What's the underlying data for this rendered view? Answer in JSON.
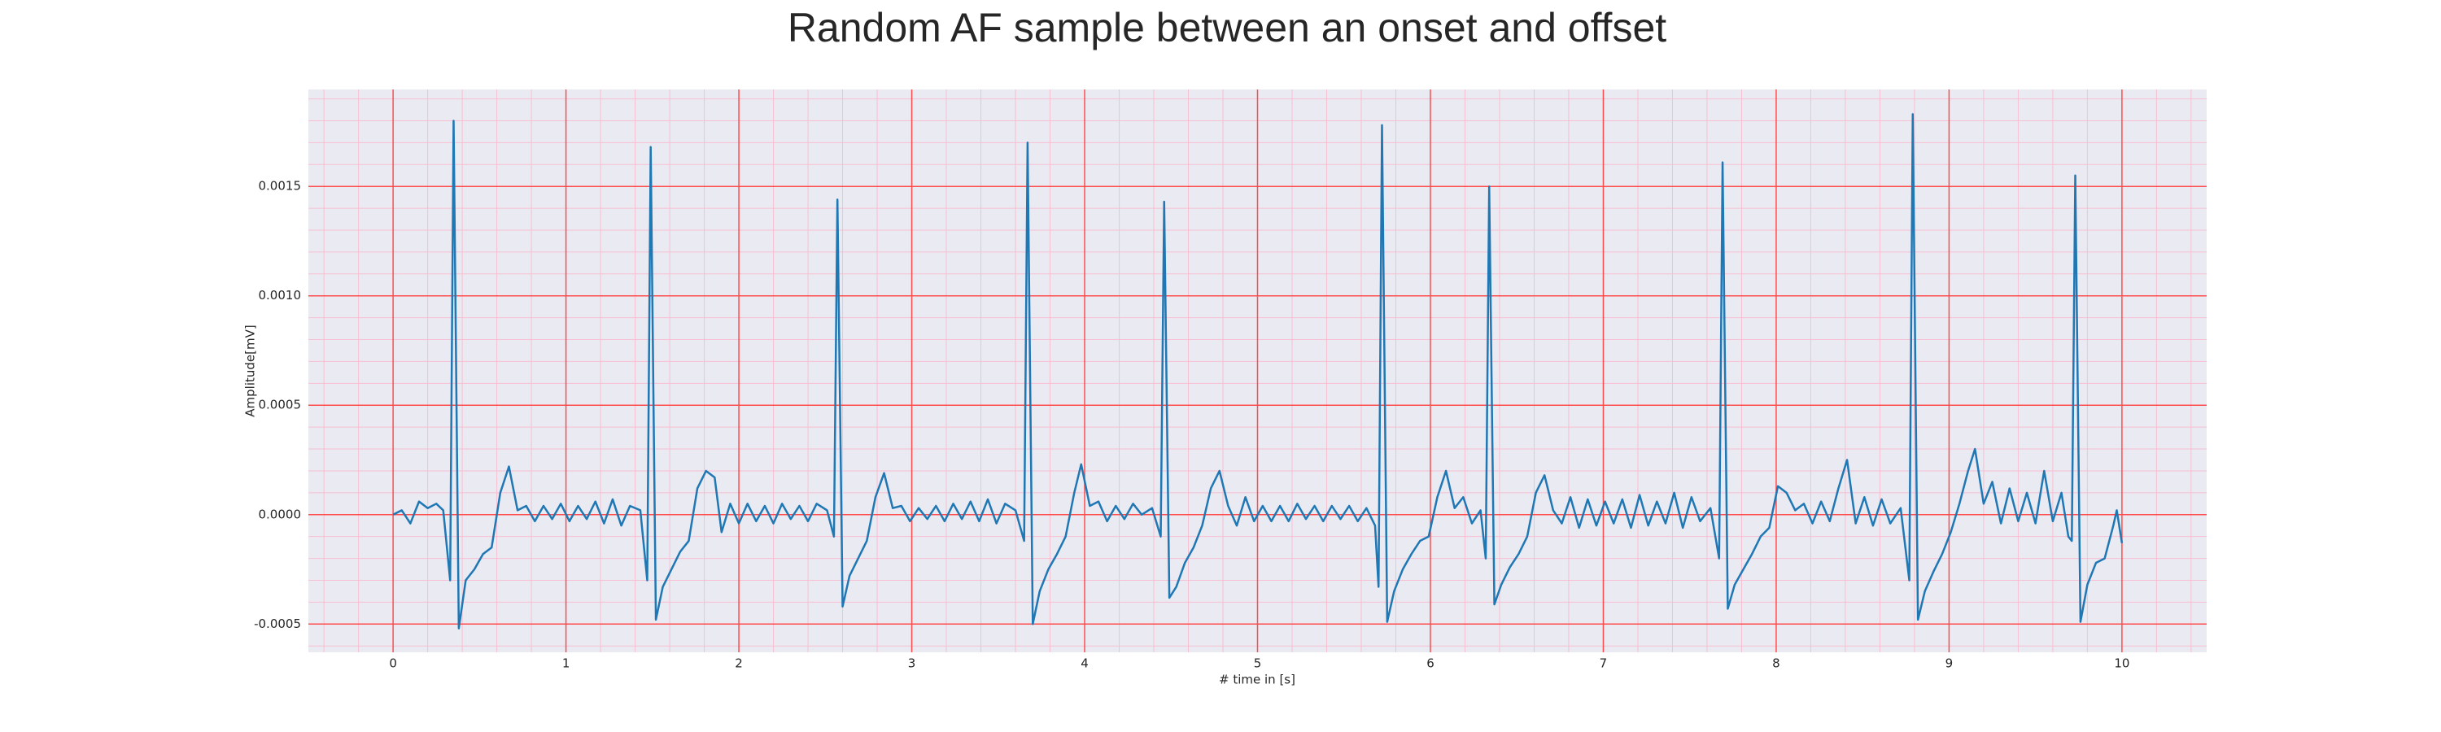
{
  "chart_data": {
    "type": "line",
    "title": "Random AF sample between an onset and offset",
    "xlabel": "# time in [s]",
    "ylabel": "Amplitude[mV]",
    "color": "#1f77b4",
    "grid": true,
    "grid_color": "#ff4d4d",
    "minor_grid_color": "#f7bfd0",
    "background": "#eaeaf2",
    "xlim": [
      -0.49,
      10.49
    ],
    "ylim": [
      -0.000629,
      0.001943
    ],
    "xticks": [
      0,
      1,
      2,
      3,
      4,
      5,
      6,
      7,
      8,
      9,
      10
    ],
    "yticks": [
      {
        "value": -0.0005,
        "label": "-0.0005"
      },
      {
        "value": 0,
        "label": "0.0000"
      },
      {
        "value": 0.0005,
        "label": "0.0005"
      },
      {
        "value": 0.001,
        "label": "0.0010"
      },
      {
        "value": 0.0015,
        "label": "0.0015"
      }
    ],
    "xminor_ticks": [
      -0.4,
      -0.2,
      0.2,
      0.4,
      0.6,
      0.8,
      1.2,
      1.4,
      1.6,
      1.8,
      2.2,
      2.4,
      2.6,
      2.8,
      3.2,
      3.4,
      3.6,
      3.8,
      4.2,
      4.4,
      4.6,
      4.8,
      5.2,
      5.4,
      5.6,
      5.8,
      6.2,
      6.4,
      6.6,
      6.8,
      7.2,
      7.4,
      7.6,
      7.8,
      8.2,
      8.4,
      8.6,
      8.8,
      9.2,
      9.4,
      9.6,
      9.8,
      10.2,
      10.4
    ],
    "yminor_ticks": [
      -0.0006,
      -0.0004,
      -0.0003,
      -0.0002,
      -0.0001,
      0.0001,
      0.0002,
      0.0003,
      0.0004,
      0.0006,
      0.0007,
      0.0008,
      0.0009,
      0.0011,
      0.0012,
      0.0013,
      0.0014,
      0.0016,
      0.0017,
      0.0018,
      0.0019
    ],
    "x": [
      0.0,
      0.05,
      0.1,
      0.15,
      0.2,
      0.25,
      0.29,
      0.33,
      0.35,
      0.38,
      0.42,
      0.47,
      0.52,
      0.57,
      0.62,
      0.67,
      0.72,
      0.77,
      0.82,
      0.87,
      0.92,
      0.97,
      1.02,
      1.07,
      1.12,
      1.17,
      1.22,
      1.27,
      1.32,
      1.37,
      1.43,
      1.47,
      1.49,
      1.52,
      1.56,
      1.61,
      1.66,
      1.71,
      1.76,
      1.81,
      1.86,
      1.9,
      1.95,
      2.0,
      2.05,
      2.1,
      2.15,
      2.2,
      2.25,
      2.3,
      2.35,
      2.4,
      2.45,
      2.51,
      2.55,
      2.57,
      2.6,
      2.64,
      2.69,
      2.74,
      2.79,
      2.84,
      2.89,
      2.94,
      2.99,
      3.04,
      3.09,
      3.14,
      3.19,
      3.24,
      3.29,
      3.34,
      3.39,
      3.44,
      3.49,
      3.54,
      3.6,
      3.65,
      3.67,
      3.7,
      3.74,
      3.79,
      3.84,
      3.89,
      3.94,
      3.98,
      4.03,
      4.08,
      4.13,
      4.18,
      4.23,
      4.28,
      4.33,
      4.39,
      4.44,
      4.46,
      4.49,
      4.53,
      4.58,
      4.63,
      4.68,
      4.73,
      4.78,
      4.83,
      4.88,
      4.93,
      4.98,
      5.03,
      5.08,
      5.13,
      5.18,
      5.23,
      5.28,
      5.33,
      5.38,
      5.43,
      5.48,
      5.53,
      5.58,
      5.63,
      5.68,
      5.7,
      5.72,
      5.75,
      5.79,
      5.84,
      5.89,
      5.94,
      5.99,
      6.04,
      6.09,
      6.14,
      6.19,
      6.24,
      6.29,
      6.32,
      6.34,
      6.37,
      6.41,
      6.46,
      6.51,
      6.56,
      6.61,
      6.66,
      6.71,
      6.76,
      6.81,
      6.86,
      6.91,
      6.96,
      7.01,
      7.06,
      7.11,
      7.16,
      7.21,
      7.26,
      7.31,
      7.36,
      7.41,
      7.46,
      7.51,
      7.56,
      7.62,
      7.67,
      7.69,
      7.72,
      7.76,
      7.81,
      7.86,
      7.91,
      7.96,
      8.01,
      8.06,
      8.11,
      8.16,
      8.21,
      8.26,
      8.31,
      8.36,
      8.41,
      8.46,
      8.51,
      8.56,
      8.61,
      8.66,
      8.72,
      8.77,
      8.79,
      8.82,
      8.86,
      8.91,
      8.96,
      9.01,
      9.06,
      9.11,
      9.15,
      9.2,
      9.25,
      9.3,
      9.35,
      9.4,
      9.45,
      9.5,
      9.55,
      9.6,
      9.65,
      9.69,
      9.71,
      9.73,
      9.76,
      9.8,
      9.85,
      9.9,
      9.95,
      9.97,
      10.0
    ],
    "values": [
      0,
      2e-05,
      -4e-05,
      6e-05,
      3e-05,
      5e-05,
      2e-05,
      -0.0003,
      0.0018,
      -0.00052,
      -0.0003,
      -0.00025,
      -0.00018,
      -0.00015,
      0.0001,
      0.00022,
      2e-05,
      4e-05,
      -3e-05,
      4e-05,
      -2e-05,
      5e-05,
      -3e-05,
      4e-05,
      -2e-05,
      6e-05,
      -4e-05,
      7e-05,
      -5e-05,
      4e-05,
      2e-05,
      -0.0003,
      0.00168,
      -0.00048,
      -0.00033,
      -0.00025,
      -0.00017,
      -0.00012,
      0.00012,
      0.0002,
      0.00017,
      -8e-05,
      5e-05,
      -4e-05,
      5e-05,
      -3e-05,
      4e-05,
      -4e-05,
      5e-05,
      -2e-05,
      4e-05,
      -3e-05,
      5e-05,
      2e-05,
      -0.0001,
      0.00144,
      -0.00042,
      -0.00028,
      -0.0002,
      -0.00012,
      8e-05,
      0.00019,
      3e-05,
      4e-05,
      -3e-05,
      3e-05,
      -2e-05,
      4e-05,
      -3e-05,
      5e-05,
      -2e-05,
      6e-05,
      -3e-05,
      7e-05,
      -4e-05,
      5e-05,
      2e-05,
      -0.00012,
      0.0017,
      -0.0005,
      -0.00035,
      -0.00025,
      -0.00018,
      -0.0001,
      0.0001,
      0.00023,
      4e-05,
      6e-05,
      -3e-05,
      4e-05,
      -2e-05,
      5e-05,
      0,
      3e-05,
      -0.0001,
      0.00143,
      -0.00038,
      -0.00033,
      -0.00022,
      -0.00015,
      -5e-05,
      0.00012,
      0.0002,
      4e-05,
      -5e-05,
      8e-05,
      -3e-05,
      4e-05,
      -3e-05,
      4e-05,
      -3e-05,
      5e-05,
      -2e-05,
      4e-05,
      -3e-05,
      4e-05,
      -2e-05,
      4e-05,
      -3e-05,
      3e-05,
      -5e-05,
      -0.00033,
      0.00178,
      -0.00049,
      -0.00035,
      -0.00025,
      -0.00018,
      -0.00012,
      -0.0001,
      8e-05,
      0.0002,
      3e-05,
      8e-05,
      -4e-05,
      2e-05,
      -0.0002,
      0.0015,
      -0.00041,
      -0.00032,
      -0.00024,
      -0.00018,
      -0.0001,
      0.0001,
      0.00018,
      2e-05,
      -4e-05,
      8e-05,
      -6e-05,
      7e-05,
      -5e-05,
      6e-05,
      -4e-05,
      7e-05,
      -6e-05,
      9e-05,
      -5e-05,
      6e-05,
      -4e-05,
      0.0001,
      -6e-05,
      8e-05,
      -3e-05,
      3e-05,
      -0.0002,
      0.00161,
      -0.00043,
      -0.00032,
      -0.00025,
      -0.00018,
      -0.0001,
      -6e-05,
      0.00013,
      0.0001,
      2e-05,
      5e-05,
      -4e-05,
      6e-05,
      -3e-05,
      0.00012,
      0.00025,
      -4e-05,
      8e-05,
      -5e-05,
      7e-05,
      -4e-05,
      3e-05,
      -0.0003,
      0.00183,
      -0.00048,
      -0.00035,
      -0.00026,
      -0.00018,
      -8e-05,
      5e-05,
      0.0002,
      0.0003,
      5e-05,
      0.00015,
      -4e-05,
      0.00012,
      -3e-05,
      0.0001,
      -4e-05,
      0.0002,
      -3e-05,
      0.0001,
      -0.0001,
      -0.00012,
      0.00155,
      -0.00049,
      -0.00032,
      -0.00022,
      -0.0002,
      -5e-05,
      2e-05,
      -0.00013
    ]
  }
}
